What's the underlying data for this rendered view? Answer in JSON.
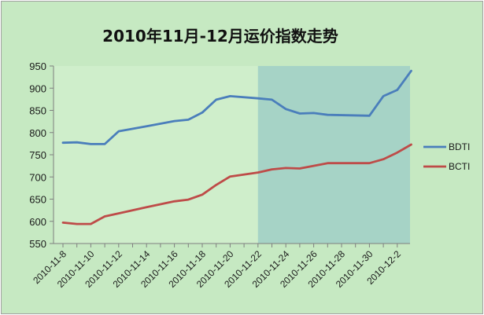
{
  "chart_data": {
    "type": "line",
    "title": "2010年11月-12月运价指数走势",
    "xlabel": "",
    "ylabel": "",
    "ylim": [
      550,
      950
    ],
    "yticks": [
      550,
      600,
      650,
      700,
      750,
      800,
      850,
      900,
      950
    ],
    "grid": false,
    "legend": "right",
    "x": [
      "2010-11-8",
      "2010-11-9",
      "2010-11-10",
      "2010-11-11",
      "2010-11-12",
      "2010-11-13",
      "2010-11-14",
      "2010-11-15",
      "2010-11-16",
      "2010-11-17",
      "2010-11-18",
      "2010-11-19",
      "2010-11-20",
      "2010-11-21",
      "2010-11-22",
      "2010-11-23",
      "2010-11-24",
      "2010-11-25",
      "2010-11-26",
      "2010-11-27",
      "2010-11-28",
      "2010-11-29",
      "2010-11-30",
      "2010-12-1",
      "2010-12-2"
    ],
    "xtick_labels": [
      "2010-11-8",
      "2010-11-10",
      "2010-11-12",
      "2010-11-14",
      "2010-11-16",
      "2010-11-18",
      "2010-11-20",
      "2010-11-22",
      "2010-11-24",
      "2010-11-26",
      "2010-11-28",
      "2010-11-30",
      "2010-12-2"
    ],
    "highlight_range": [
      "2010-11-22",
      "2010-12-2"
    ],
    "series": [
      {
        "name": "BDTI",
        "color": "#4a7ebb",
        "points": [
          [
            "2010-11-8",
            777
          ],
          [
            "2010-11-9",
            778
          ],
          [
            "2010-11-10",
            774
          ],
          [
            "2010-11-11",
            774
          ],
          [
            "2010-11-12",
            803
          ],
          [
            "2010-11-14",
            814
          ],
          [
            "2010-11-16",
            826
          ],
          [
            "2010-11-17",
            829
          ],
          [
            "2010-11-18",
            845
          ],
          [
            "2010-11-19",
            874
          ],
          [
            "2010-11-20",
            882
          ],
          [
            "2010-11-22",
            877
          ],
          [
            "2010-11-23",
            874
          ],
          [
            "2010-11-24",
            853
          ],
          [
            "2010-11-25",
            843
          ],
          [
            "2010-11-26",
            844
          ],
          [
            "2010-11-27",
            840
          ],
          [
            "2010-11-30",
            838
          ],
          [
            "2010-12-1",
            882
          ],
          [
            "2010-12-2",
            896
          ],
          [
            "2010-12-3",
            939
          ]
        ]
      },
      {
        "name": "BCTI",
        "color": "#be4b48",
        "points": [
          [
            "2010-11-8",
            597
          ],
          [
            "2010-11-9",
            594
          ],
          [
            "2010-11-10",
            594
          ],
          [
            "2010-11-11",
            611
          ],
          [
            "2010-11-12",
            618
          ],
          [
            "2010-11-14",
            632
          ],
          [
            "2010-11-16",
            645
          ],
          [
            "2010-11-17",
            649
          ],
          [
            "2010-11-18",
            660
          ],
          [
            "2010-11-19",
            682
          ],
          [
            "2010-11-20",
            701
          ],
          [
            "2010-11-22",
            710
          ],
          [
            "2010-11-23",
            717
          ],
          [
            "2010-11-24",
            720
          ],
          [
            "2010-11-25",
            719
          ],
          [
            "2010-11-26",
            725
          ],
          [
            "2010-11-27",
            731
          ],
          [
            "2010-11-30",
            731
          ],
          [
            "2010-12-1",
            740
          ],
          [
            "2010-12-2",
            755
          ],
          [
            "2010-12-3",
            773
          ]
        ]
      }
    ],
    "colors": {
      "outer_background": "#c6e9c2",
      "plot_background": "#cfeecb",
      "highlight": "#a6d3c6",
      "axis": "#7f7f7f",
      "border": "#a0a0a0"
    }
  }
}
